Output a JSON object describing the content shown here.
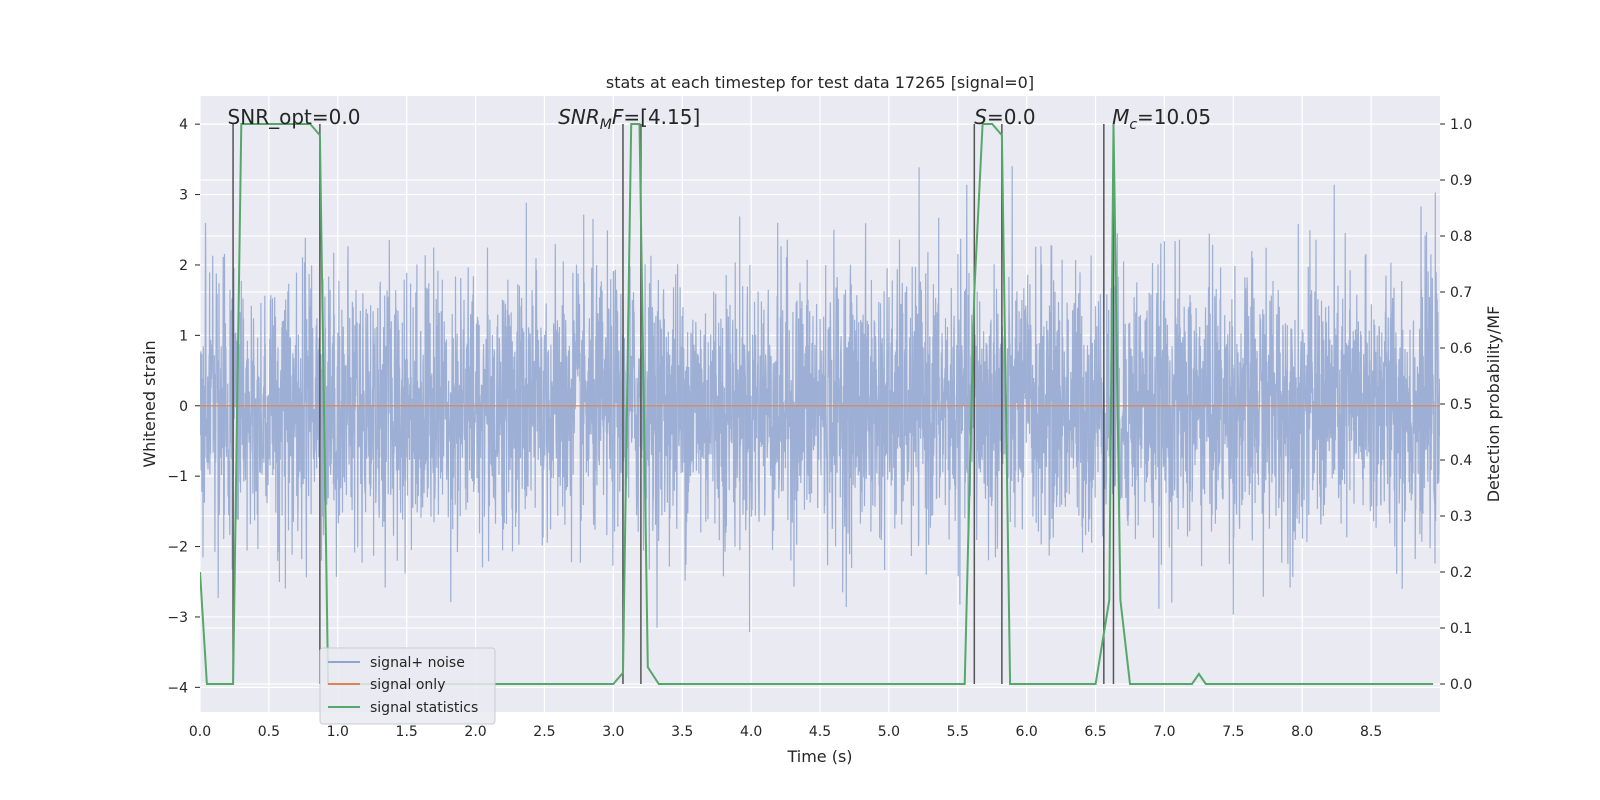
{
  "chart_data": {
    "type": "line",
    "title": "stats at each timestep for test data 17265 [signal=0]",
    "xlabel": "Time (s)",
    "ylabel": "Whitened strain",
    "ylabel_right": "Detection probability/MF",
    "xlim": [
      0.0,
      9.0
    ],
    "ylim": [
      -4.35,
      4.4
    ],
    "ylim_right": [
      -0.05,
      1.05
    ],
    "x_ticks": [
      "0.0",
      "0.5",
      "1.0",
      "1.5",
      "2.0",
      "2.5",
      "3.0",
      "3.5",
      "4.0",
      "4.5",
      "5.0",
      "5.5",
      "6.0",
      "6.5",
      "7.0",
      "7.5",
      "8.0",
      "8.5"
    ],
    "y_ticks": [
      "4",
      "3",
      "2",
      "1",
      "0",
      "−1",
      "−2",
      "−3",
      "−4"
    ],
    "y_tick_values": [
      4,
      3,
      2,
      1,
      0,
      -1,
      -2,
      -3,
      -4
    ],
    "y_ticks_right": [
      "1.0",
      "0.9",
      "0.8",
      "0.7",
      "0.6",
      "0.5",
      "0.4",
      "0.3",
      "0.2",
      "0.1",
      "0.0"
    ],
    "y_tick_values_right": [
      1.0,
      0.9,
      0.8,
      0.7,
      0.6,
      0.5,
      0.4,
      0.3,
      0.2,
      0.1,
      0.0
    ],
    "grid": true,
    "legend_position": "lower-left",
    "annotations": [
      {
        "kind": "plain",
        "text": "SNR_opt=0.0",
        "x": 0.2
      },
      {
        "kind": "sub",
        "main": "SNR",
        "sub": "M",
        "rest": "F=[4.15]",
        "x": 2.6
      },
      {
        "kind": "italic",
        "main": "S",
        "rest": "=0.0",
        "x": 5.62
      },
      {
        "kind": "sub",
        "main": "M",
        "sub": "c",
        "rest": "=10.05",
        "x": 6.62
      }
    ],
    "event_lines_x": [
      0.24,
      0.87,
      3.07,
      3.2,
      5.62,
      5.82,
      6.56,
      6.63
    ],
    "series": [
      {
        "name": "signal+ noise",
        "color": "#8fa4cf",
        "axis": "left",
        "description": "noise strain, mostly within ±1.7 with spikes to about ±4"
      },
      {
        "name": "signal only",
        "color": "#dd8452",
        "axis": "left",
        "x": [
          0.0,
          9.0
        ],
        "y": [
          0.0,
          0.0
        ]
      },
      {
        "name": "signal statistics",
        "color": "#55a868",
        "axis": "right",
        "x": [
          0.0,
          0.05,
          0.24,
          0.3,
          0.36,
          0.8,
          0.87,
          0.93,
          3.0,
          3.07,
          3.13,
          3.19,
          3.25,
          3.33,
          5.55,
          5.62,
          5.68,
          5.75,
          5.82,
          5.88,
          6.5,
          6.6,
          6.63,
          6.68,
          6.75,
          7.2,
          7.25,
          7.3,
          8.95
        ],
        "y": [
          0.2,
          0.0,
          0.0,
          1.0,
          1.0,
          1.0,
          0.98,
          0.0,
          0.0,
          0.02,
          1.0,
          1.0,
          0.03,
          0.0,
          0.0,
          0.7,
          1.0,
          1.0,
          0.98,
          0.0,
          0.0,
          0.15,
          1.0,
          0.15,
          0.0,
          0.0,
          0.018,
          0.0,
          0.0
        ]
      }
    ]
  }
}
